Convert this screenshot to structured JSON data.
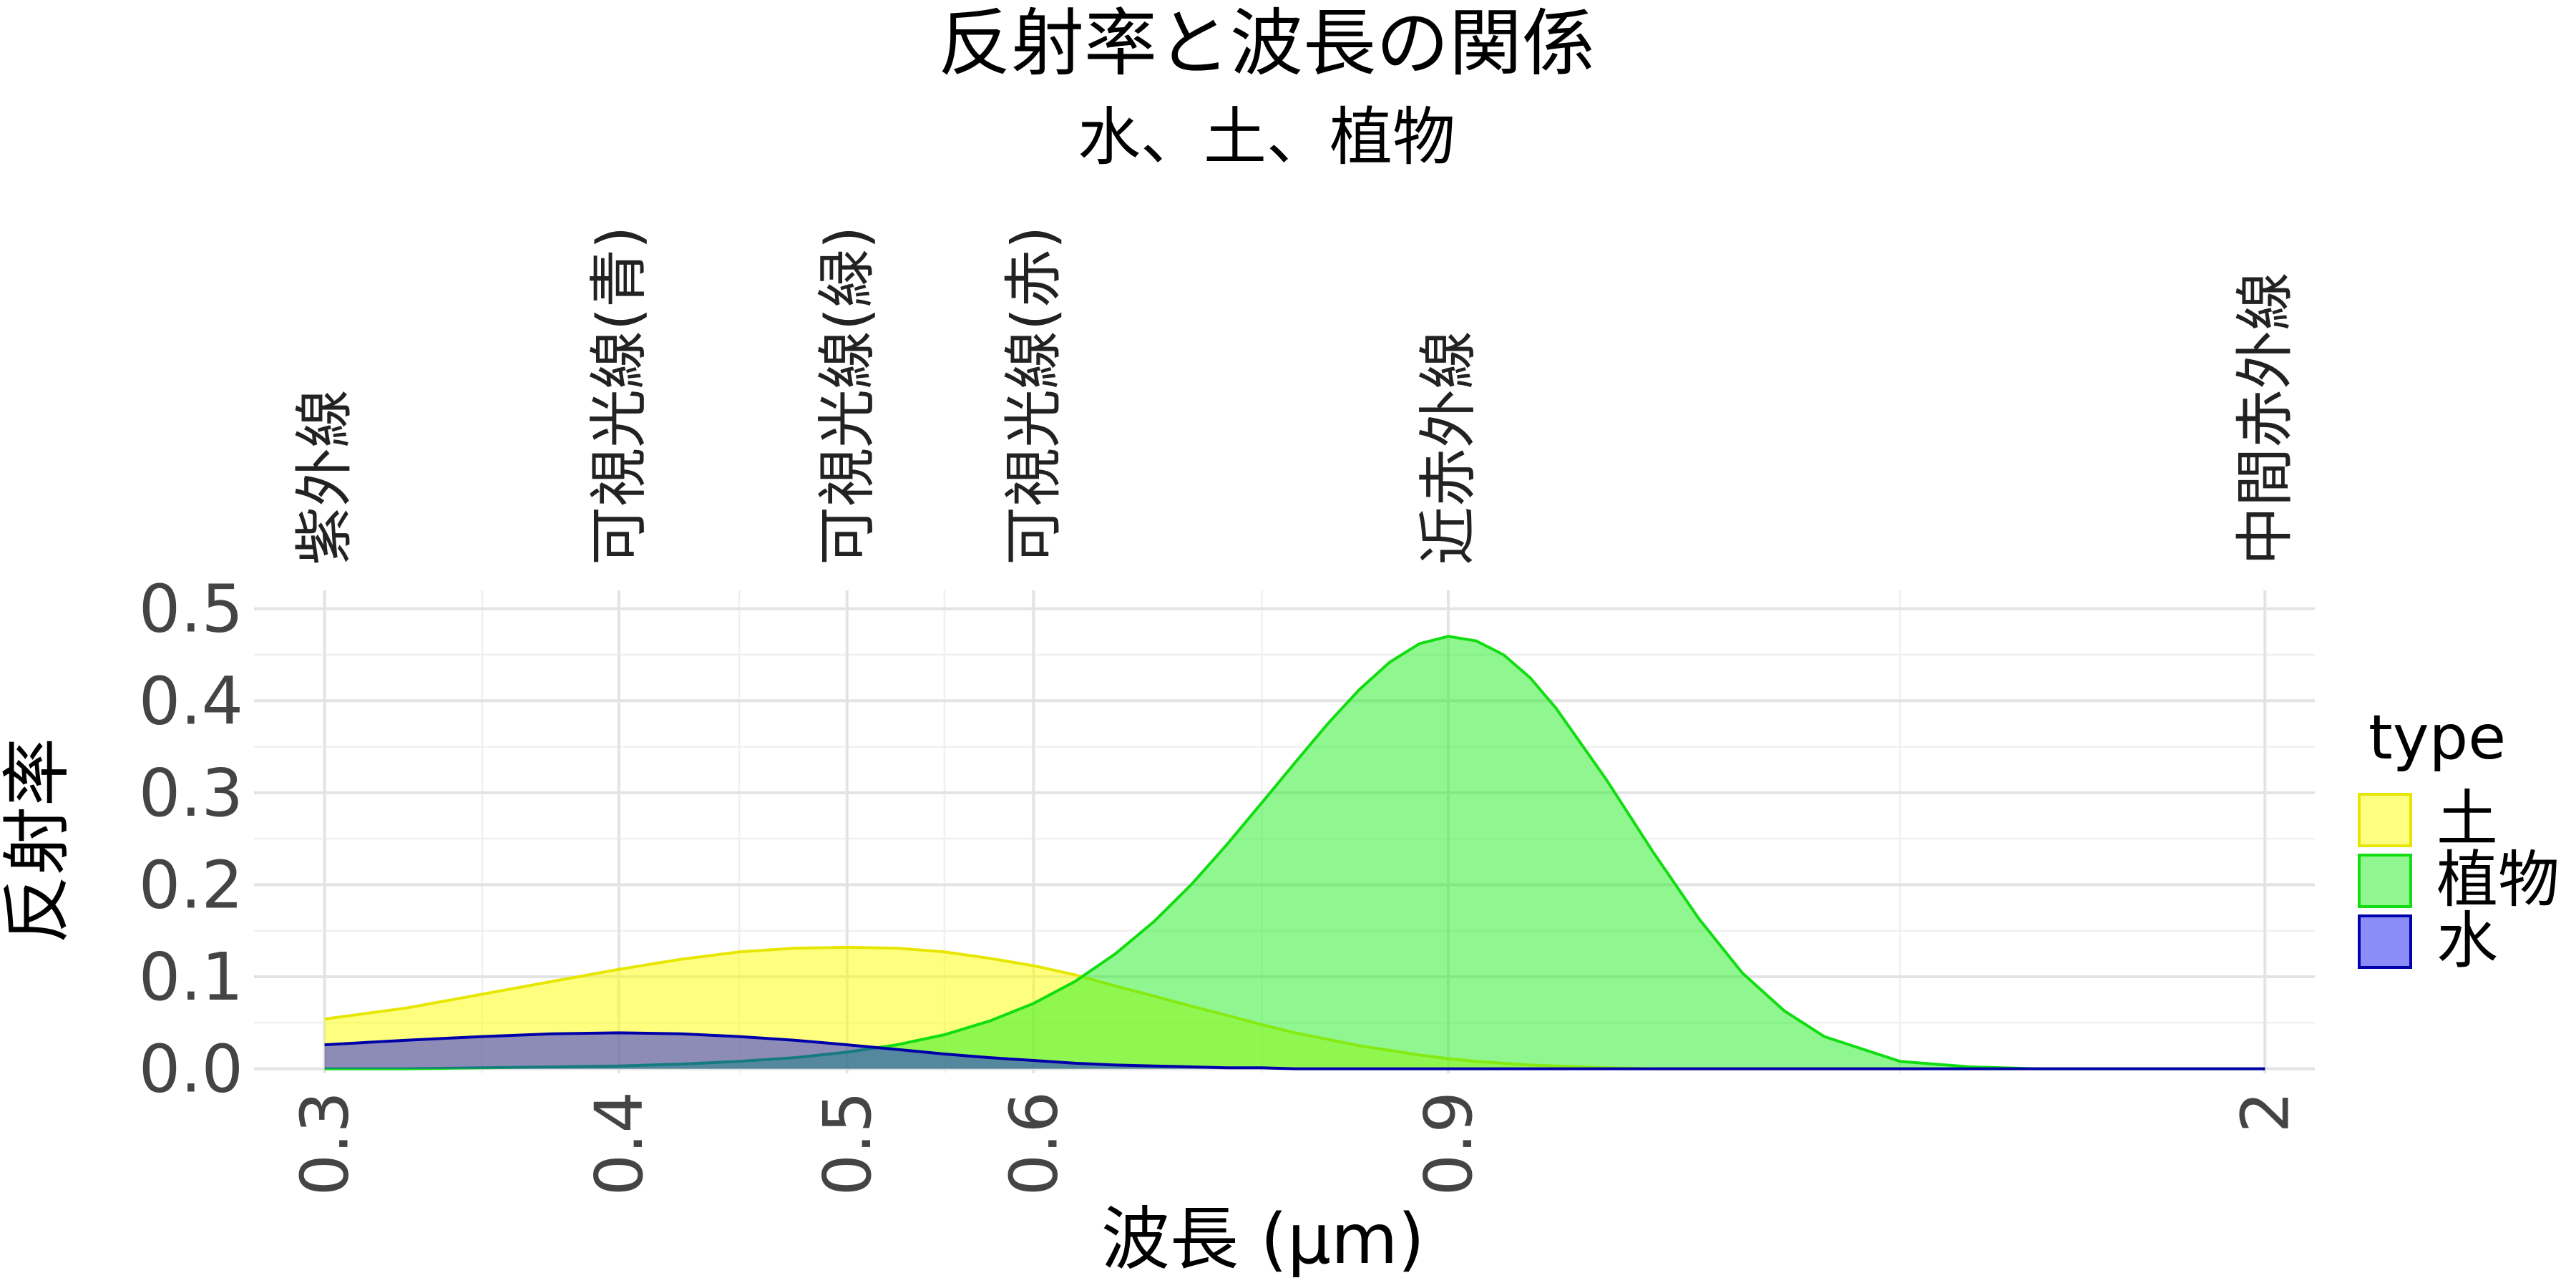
{
  "chart_data": {
    "type": "area",
    "title": "反射率と波長の関係",
    "subtitle": "水、土、植物",
    "xlabel": "波長 (μm)",
    "ylabel": "反射率",
    "x_scale": "log",
    "xlim": [
      0.28,
      2.1
    ],
    "ylim": [
      -0.005,
      0.52
    ],
    "x_ticks": [
      0.3,
      0.4,
      0.5,
      0.6,
      0.9,
      2
    ],
    "x_tick_labels": [
      "0.3",
      "0.4",
      "0.5",
      "0.6",
      "0.9",
      "2"
    ],
    "y_ticks": [
      0.0,
      0.1,
      0.2,
      0.3,
      0.4,
      0.5
    ],
    "y_tick_labels": [
      "0.0",
      "0.1",
      "0.2",
      "0.3",
      "0.4",
      "0.5"
    ],
    "grid": true,
    "legend_position": "right",
    "legend_title": "type",
    "x": [
      0.3,
      0.325,
      0.35,
      0.375,
      0.4,
      0.425,
      0.45,
      0.475,
      0.5,
      0.525,
      0.55,
      0.575,
      0.6,
      0.625,
      0.65,
      0.675,
      0.7,
      0.725,
      0.75,
      0.775,
      0.8,
      0.825,
      0.85,
      0.875,
      0.9,
      0.925,
      0.95,
      0.975,
      1.0,
      1.05,
      1.1,
      1.15,
      1.2,
      1.25,
      1.3,
      1.4,
      1.5,
      1.6,
      1.7,
      1.8,
      1.9,
      2.0
    ],
    "series": [
      {
        "name": "土",
        "fill": "#ffff00",
        "stroke": "#e6e600",
        "values": [
          0.054,
          0.066,
          0.081,
          0.095,
          0.108,
          0.119,
          0.127,
          0.131,
          0.132,
          0.131,
          0.127,
          0.12,
          0.112,
          0.102,
          0.09,
          0.079,
          0.068,
          0.058,
          0.048,
          0.039,
          0.032,
          0.025,
          0.02,
          0.015,
          0.011,
          0.008,
          0.006,
          0.004,
          0.003,
          0.001,
          0.0,
          0.0,
          0.0,
          0.0,
          0.0,
          0.0,
          0.0,
          0.0,
          0.0,
          0.0,
          0.0,
          0.0
        ]
      },
      {
        "name": "植物",
        "fill": "#22ee22",
        "stroke": "#11dd11",
        "values": [
          0.0,
          0.0,
          0.001,
          0.002,
          0.003,
          0.005,
          0.008,
          0.012,
          0.018,
          0.026,
          0.037,
          0.052,
          0.071,
          0.095,
          0.125,
          0.16,
          0.2,
          0.244,
          0.289,
          0.333,
          0.375,
          0.412,
          0.442,
          0.462,
          0.47,
          0.465,
          0.45,
          0.425,
          0.392,
          0.315,
          0.235,
          0.163,
          0.104,
          0.063,
          0.035,
          0.008,
          0.002,
          0.0,
          0.0,
          0.0,
          0.0,
          0.0
        ]
      },
      {
        "name": "水",
        "fill": "#1a1aee",
        "stroke": "#0000aa",
        "values": [
          0.026,
          0.031,
          0.035,
          0.038,
          0.039,
          0.038,
          0.035,
          0.031,
          0.026,
          0.021,
          0.016,
          0.012,
          0.009,
          0.006,
          0.004,
          0.003,
          0.002,
          0.001,
          0.001,
          0.0,
          0.0,
          0.0,
          0.0,
          0.0,
          0.0,
          0.0,
          0.0,
          0.0,
          0.0,
          0.0,
          0.0,
          0.0,
          0.0,
          0.0,
          0.0,
          0.0,
          0.0,
          0.0,
          0.0,
          0.0,
          0.0,
          0.0
        ]
      }
    ],
    "bands": [
      {
        "label": "紫外線",
        "x": 0.3
      },
      {
        "label": "可視光線(青)",
        "x": 0.4
      },
      {
        "label": "可視光線(緑)",
        "x": 0.5
      },
      {
        "label": "可視光線(赤)",
        "x": 0.6
      },
      {
        "label": "近赤外線",
        "x": 0.9
      },
      {
        "label": "中間赤外線",
        "x": 2.0
      }
    ]
  }
}
